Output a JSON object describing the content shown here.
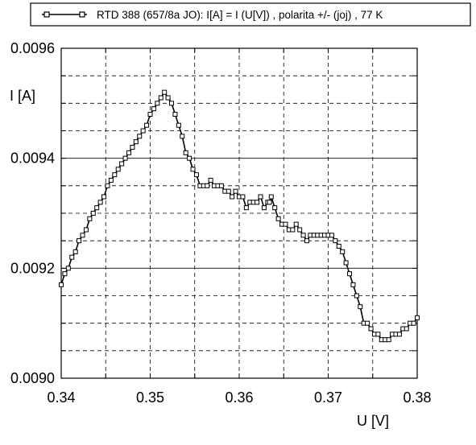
{
  "chart_data": {
    "type": "line",
    "title": "",
    "xlabel": "U [V]",
    "ylabel": "I [A]",
    "xlim": [
      0.34,
      0.38
    ],
    "ylim": [
      0.009,
      0.0096
    ],
    "x_ticks": [
      "0.34",
      "0.35",
      "0.36",
      "0.37",
      "0.38"
    ],
    "y_ticks": [
      "0.0090",
      "0.0092",
      "0.0094",
      "0.0096"
    ],
    "x_tick_values": [
      0.34,
      0.35,
      0.36,
      0.37,
      0.38
    ],
    "y_tick_values": [
      0.009,
      0.0092,
      0.0094,
      0.0096
    ],
    "grid": true,
    "legend_position": "top",
    "series": [
      {
        "name": "RTD 388 (657/8a JO):  I[A] = I (U[V]) , polarita +/- (joj) , 77 K",
        "marker": "square",
        "color": "#000000",
        "x": [
          0.34,
          0.3404,
          0.3408,
          0.3412,
          0.3416,
          0.342,
          0.3424,
          0.3428,
          0.3432,
          0.3436,
          0.344,
          0.3444,
          0.3448,
          0.3452,
          0.3456,
          0.346,
          0.3464,
          0.3468,
          0.3472,
          0.3476,
          0.348,
          0.3484,
          0.3488,
          0.3492,
          0.3496,
          0.35,
          0.3504,
          0.3508,
          0.3512,
          0.3516,
          0.352,
          0.3524,
          0.3528,
          0.3532,
          0.3536,
          0.354,
          0.3544,
          0.3548,
          0.3552,
          0.3556,
          0.356,
          0.3564,
          0.3568,
          0.3572,
          0.3576,
          0.358,
          0.3584,
          0.3588,
          0.3592,
          0.3596,
          0.36,
          0.3604,
          0.3608,
          0.3612,
          0.3616,
          0.362,
          0.3624,
          0.3628,
          0.3632,
          0.3634,
          0.3636,
          0.364,
          0.3644,
          0.3648,
          0.3652,
          0.3656,
          0.366,
          0.3664,
          0.3668,
          0.3672,
          0.3676,
          0.368,
          0.3684,
          0.3688,
          0.3692,
          0.3696,
          0.37,
          0.3704,
          0.3708,
          0.3712,
          0.3716,
          0.372,
          0.3724,
          0.3728,
          0.3732,
          0.3736,
          0.374,
          0.3744,
          0.3748,
          0.3752,
          0.3756,
          0.376,
          0.3764,
          0.3768,
          0.3772,
          0.3776,
          0.378,
          0.3784,
          0.3788,
          0.3792,
          0.3796,
          0.38
        ],
        "y": [
          0.00917,
          0.00919,
          0.0092,
          0.00922,
          0.00923,
          0.00925,
          0.00926,
          0.00927,
          0.00929,
          0.0093,
          0.00931,
          0.00932,
          0.00933,
          0.00935,
          0.00936,
          0.00937,
          0.00938,
          0.00939,
          0.0094,
          0.00941,
          0.00942,
          0.00943,
          0.00944,
          0.00945,
          0.00946,
          0.00948,
          0.00949,
          0.0095,
          0.00951,
          0.00952,
          0.00951,
          0.0095,
          0.00948,
          0.00946,
          0.00944,
          0.00941,
          0.0094,
          0.00938,
          0.00937,
          0.00935,
          0.00935,
          0.00935,
          0.00936,
          0.00935,
          0.00935,
          0.00935,
          0.00934,
          0.00934,
          0.00933,
          0.00934,
          0.00933,
          0.00933,
          0.00931,
          0.00932,
          0.00932,
          0.00932,
          0.00933,
          0.00931,
          0.00932,
          0.00932,
          0.00933,
          0.00931,
          0.00929,
          0.00928,
          0.00928,
          0.00927,
          0.00927,
          0.00928,
          0.00927,
          0.00926,
          0.00925,
          0.00926,
          0.00926,
          0.00926,
          0.00926,
          0.00926,
          0.00926,
          0.00926,
          0.00925,
          0.00924,
          0.00923,
          0.00921,
          0.00919,
          0.00917,
          0.00915,
          0.00913,
          0.0091,
          0.0091,
          0.00909,
          0.00908,
          0.00908,
          0.00907,
          0.00907,
          0.00907,
          0.00908,
          0.00908,
          0.00908,
          0.00909,
          0.00909,
          0.0091,
          0.0091,
          0.00911
        ]
      }
    ]
  }
}
